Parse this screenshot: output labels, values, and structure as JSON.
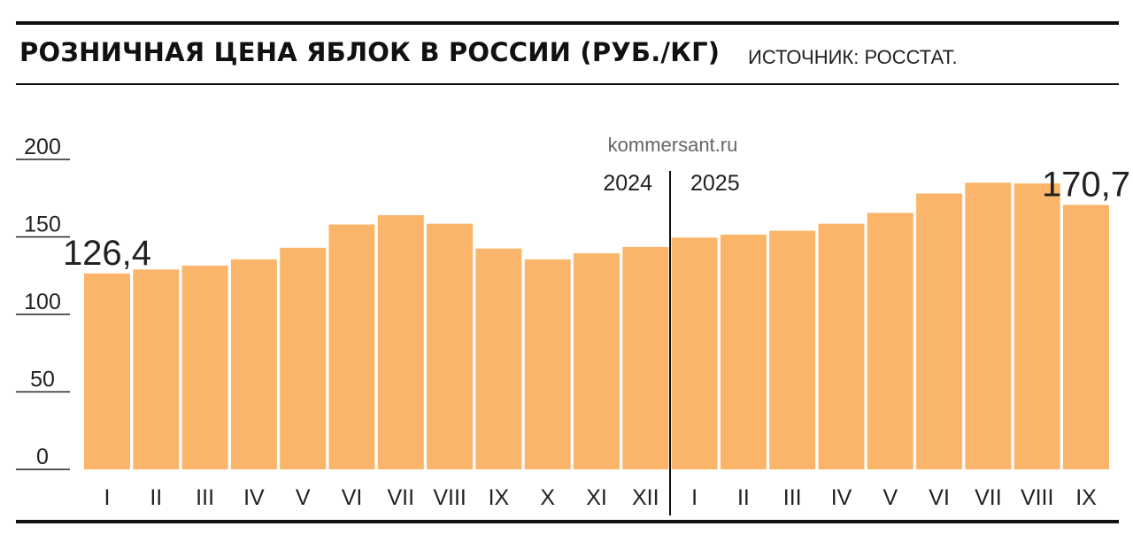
{
  "header": {
    "title": "РОЗНИЧНАЯ ЦЕНА ЯБЛОК В РОССИИ (РУБ./КГ)",
    "source": "ИСТОЧНИК: РОССТАТ."
  },
  "credit": "kommersant.ru",
  "colors": {
    "bar": "#FBB56B",
    "text": "#222222",
    "rule": "#111111",
    "credit": "#666666"
  },
  "chart_data": {
    "type": "bar",
    "title": "РОЗНИЧНАЯ ЦЕНА ЯБЛОК В РОССИИ (РУБ./КГ)",
    "categories": [
      "I",
      "II",
      "III",
      "IV",
      "V",
      "VI",
      "VII",
      "VIII",
      "IX",
      "X",
      "XI",
      "XII",
      "I",
      "II",
      "III",
      "IV",
      "V",
      "VI",
      "VII",
      "VIII",
      "IX"
    ],
    "values": [
      126.4,
      129,
      131.5,
      135.5,
      143,
      158,
      164,
      158.5,
      142.5,
      135.5,
      139.5,
      143.5,
      149.5,
      151.5,
      154,
      158.5,
      165.5,
      178,
      185,
      184.5,
      170.7
    ],
    "ylim": [
      0,
      200
    ],
    "yticks": [
      0,
      50,
      100,
      150,
      200
    ],
    "years": [
      {
        "label": "2024",
        "from": 0,
        "to": 11
      },
      {
        "label": "2025",
        "from": 12,
        "to": 20
      }
    ],
    "annotations": [
      {
        "index": 0,
        "text": "126,4"
      },
      {
        "index": 20,
        "text": "170,7"
      }
    ],
    "grid": false,
    "legend": "none"
  }
}
